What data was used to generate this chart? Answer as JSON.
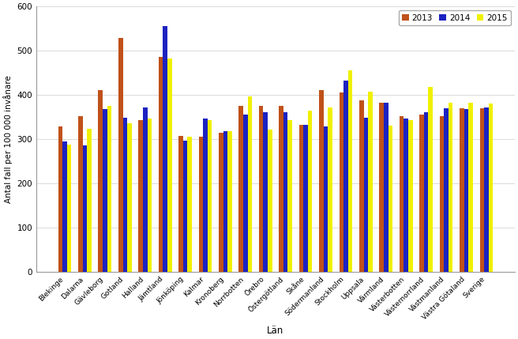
{
  "categories": [
    "Blekinge",
    "Dalarna",
    "Gävleborg",
    "Gotland",
    "Halland",
    "Jämtland",
    "Jönköping",
    "Kalmar",
    "Kronoberg",
    "Norrbotten",
    "Örebro",
    "Östergötland",
    "Skåne",
    "Södermanland",
    "Stockholm",
    "Uppsala",
    "Värmland",
    "Västerbotten",
    "Västernorrland",
    "Västmanland",
    "Västra Götaland",
    "Sverige"
  ],
  "values_2013": [
    328,
    352,
    411,
    528,
    343,
    485,
    307,
    305,
    315,
    375,
    375,
    375,
    332,
    410,
    405,
    387,
    383,
    352,
    355,
    352,
    370,
    370
  ],
  "values_2014": [
    295,
    285,
    367,
    348,
    372,
    555,
    296,
    347,
    318,
    355,
    360,
    360,
    332,
    328,
    432,
    348,
    382,
    347,
    360,
    370,
    368,
    372
  ],
  "values_2015": [
    288,
    323,
    375,
    335,
    347,
    483,
    305,
    343,
    317,
    397,
    322,
    342,
    365,
    372,
    456,
    408,
    330,
    342,
    418,
    382,
    382,
    380
  ],
  "color_2013": "#C0511A",
  "color_2014": "#1C22C0",
  "color_2015": "#F0F000",
  "ylabel": "Antal fall per 100 000 invånare",
  "xlabel": "Län",
  "ylim": [
    0,
    600
  ],
  "yticks": [
    0,
    100,
    200,
    300,
    400,
    500,
    600
  ],
  "legend_labels": [
    "2013",
    "2014",
    "2015"
  ],
  "background_color": "#ffffff",
  "bar_width": 0.22,
  "figwidth": 6.56,
  "figheight": 4.29,
  "dpi": 100
}
